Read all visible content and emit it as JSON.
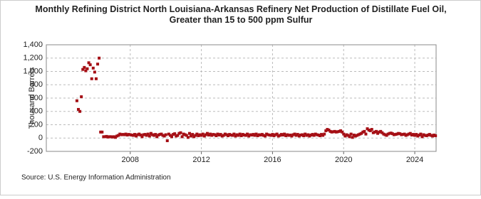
{
  "chart_data": {
    "type": "scatter",
    "title": "Monthly Refining District North Louisiana-Arkansas Refinery Net Production of Distillate Fuel Oil, Greater than 15 to 500 ppm Sulfur",
    "ylabel": "Thousand Barrels",
    "source": "Source: U.S. Energy Information Administration",
    "xlim": [
      2003.28,
      2025.2
    ],
    "xticks": [
      2008,
      2012,
      2016,
      2020,
      2024
    ],
    "ylim": [
      -200,
      1400
    ],
    "yticks": [
      -200,
      0,
      200,
      400,
      600,
      800,
      {
        "value": 1000,
        "label": "1,000"
      },
      {
        "value": 1200,
        "label": "1,200"
      },
      {
        "value": 1400,
        "label": "1,400"
      }
    ],
    "grid": true,
    "series": [
      {
        "name": "Net Production",
        "color": "#a50f15",
        "x": [
          2005,
          2005.083,
          2005.167,
          2005.25,
          2005.333,
          2005.417,
          2005.5,
          2005.583,
          2005.667,
          2005.75,
          2005.833,
          2005.917,
          2006,
          2006.083,
          2006.167,
          2006.25,
          2006.333,
          2006.417,
          2006.5,
          2006.583,
          2006.667,
          2006.75,
          2006.833,
          2006.917,
          2007,
          2007.083,
          2007.167,
          2007.25,
          2007.333,
          2007.417,
          2007.5,
          2007.583,
          2007.667,
          2007.75,
          2007.833,
          2007.917,
          2008,
          2008.083,
          2008.167,
          2008.25,
          2008.333,
          2008.417,
          2008.5,
          2008.583,
          2008.667,
          2008.75,
          2008.833,
          2008.917,
          2009,
          2009.083,
          2009.167,
          2009.25,
          2009.333,
          2009.417,
          2009.5,
          2009.583,
          2009.667,
          2009.75,
          2009.833,
          2009.917,
          2010,
          2010.083,
          2010.167,
          2010.25,
          2010.333,
          2010.417,
          2010.5,
          2010.583,
          2010.667,
          2010.75,
          2010.833,
          2010.917,
          2011,
          2011.083,
          2011.167,
          2011.25,
          2011.333,
          2011.417,
          2011.5,
          2011.583,
          2011.667,
          2011.75,
          2011.833,
          2011.917,
          2012,
          2012.083,
          2012.167,
          2012.25,
          2012.333,
          2012.417,
          2012.5,
          2012.583,
          2012.667,
          2012.75,
          2012.833,
          2012.917,
          2013,
          2013.083,
          2013.167,
          2013.25,
          2013.333,
          2013.417,
          2013.5,
          2013.583,
          2013.667,
          2013.75,
          2013.833,
          2013.917,
          2014,
          2014.083,
          2014.167,
          2014.25,
          2014.333,
          2014.417,
          2014.5,
          2014.583,
          2014.667,
          2014.75,
          2014.833,
          2014.917,
          2015,
          2015.083,
          2015.167,
          2015.25,
          2015.333,
          2015.417,
          2015.5,
          2015.583,
          2015.667,
          2015.75,
          2015.833,
          2015.917,
          2016,
          2016.083,
          2016.167,
          2016.25,
          2016.333,
          2016.417,
          2016.5,
          2016.583,
          2016.667,
          2016.75,
          2016.833,
          2016.917,
          2017,
          2017.083,
          2017.167,
          2017.25,
          2017.333,
          2017.417,
          2017.5,
          2017.583,
          2017.667,
          2017.75,
          2017.833,
          2017.917,
          2018,
          2018.083,
          2018.167,
          2018.25,
          2018.333,
          2018.417,
          2018.5,
          2018.583,
          2018.667,
          2018.75,
          2018.833,
          2018.917,
          2019,
          2019.083,
          2019.167,
          2019.25,
          2019.333,
          2019.417,
          2019.5,
          2019.583,
          2019.667,
          2019.75,
          2019.833,
          2019.917,
          2020,
          2020.083,
          2020.167,
          2020.25,
          2020.333,
          2020.417,
          2020.5,
          2020.583,
          2020.667,
          2020.75,
          2020.833,
          2020.917,
          2021,
          2021.083,
          2021.167,
          2021.25,
          2021.333,
          2021.417,
          2021.5,
          2021.583,
          2021.667,
          2021.75,
          2021.833,
          2021.917,
          2022,
          2022.083,
          2022.167,
          2022.25,
          2022.333,
          2022.417,
          2022.5,
          2022.583,
          2022.667,
          2022.75,
          2022.833,
          2022.917,
          2023,
          2023.083,
          2023.167,
          2023.25,
          2023.333,
          2023.417,
          2023.5,
          2023.583,
          2023.667,
          2023.75,
          2023.833,
          2023.917,
          2024,
          2024.083,
          2024.167,
          2024.25,
          2024.333,
          2024.417,
          2024.5,
          2024.583,
          2024.667,
          2024.75,
          2024.833,
          2024.917,
          2025,
          2025.083,
          2025.167
        ],
        "values": [
          560,
          430,
          400,
          620,
          1030,
          1060,
          1010,
          1040,
          1130,
          1100,
          890,
          1050,
          990,
          890,
          1110,
          1200,
          90,
          90,
          20,
          20,
          25,
          15,
          20,
          20,
          15,
          20,
          10,
          30,
          40,
          60,
          50,
          55,
          50,
          60,
          45,
          55,
          50,
          45,
          40,
          55,
          30,
          50,
          60,
          45,
          20,
          50,
          55,
          40,
          60,
          30,
          70,
          50,
          40,
          55,
          20,
          45,
          55,
          60,
          40,
          30,
          50,
          -40,
          60,
          40,
          20,
          55,
          65,
          30,
          40,
          70,
          80,
          20,
          60,
          50,
          40,
          10,
          70,
          30,
          55,
          20,
          40,
          60,
          35,
          50,
          40,
          60,
          30,
          50,
          70,
          45,
          60,
          40,
          55,
          50,
          35,
          60,
          45,
          55,
          30,
          40,
          60,
          50,
          35,
          55,
          45,
          40,
          60,
          30,
          50,
          40,
          60,
          35,
          55,
          45,
          40,
          60,
          30,
          50,
          45,
          55,
          40,
          60,
          35,
          50,
          45,
          55,
          40,
          30,
          60,
          50,
          45,
          40,
          55,
          35,
          50,
          60,
          30,
          40,
          55,
          45,
          60,
          35,
          50,
          40,
          45,
          30,
          50,
          60,
          40,
          55,
          30,
          45,
          50,
          35,
          60,
          40,
          50,
          30,
          45,
          55,
          40,
          60,
          50,
          45,
          35,
          55,
          40,
          60,
          110,
          130,
          120,
          100,
          90,
          95,
          100,
          90,
          95,
          100,
          110,
          90,
          60,
          30,
          50,
          40,
          20,
          60,
          10,
          45,
          30,
          40,
          50,
          60,
          70,
          90,
          100,
          60,
          140,
          120,
          110,
          130,
          80,
          90,
          100,
          70,
          90,
          100,
          80,
          60,
          50,
          40,
          60,
          70,
          75,
          65,
          50,
          55,
          60,
          70,
          65,
          50,
          55,
          60,
          40,
          50,
          60,
          70,
          45,
          55,
          40,
          55,
          30,
          45,
          60,
          20,
          50,
          40,
          35,
          45,
          55,
          40,
          30,
          45,
          35
        ]
      }
    ]
  }
}
